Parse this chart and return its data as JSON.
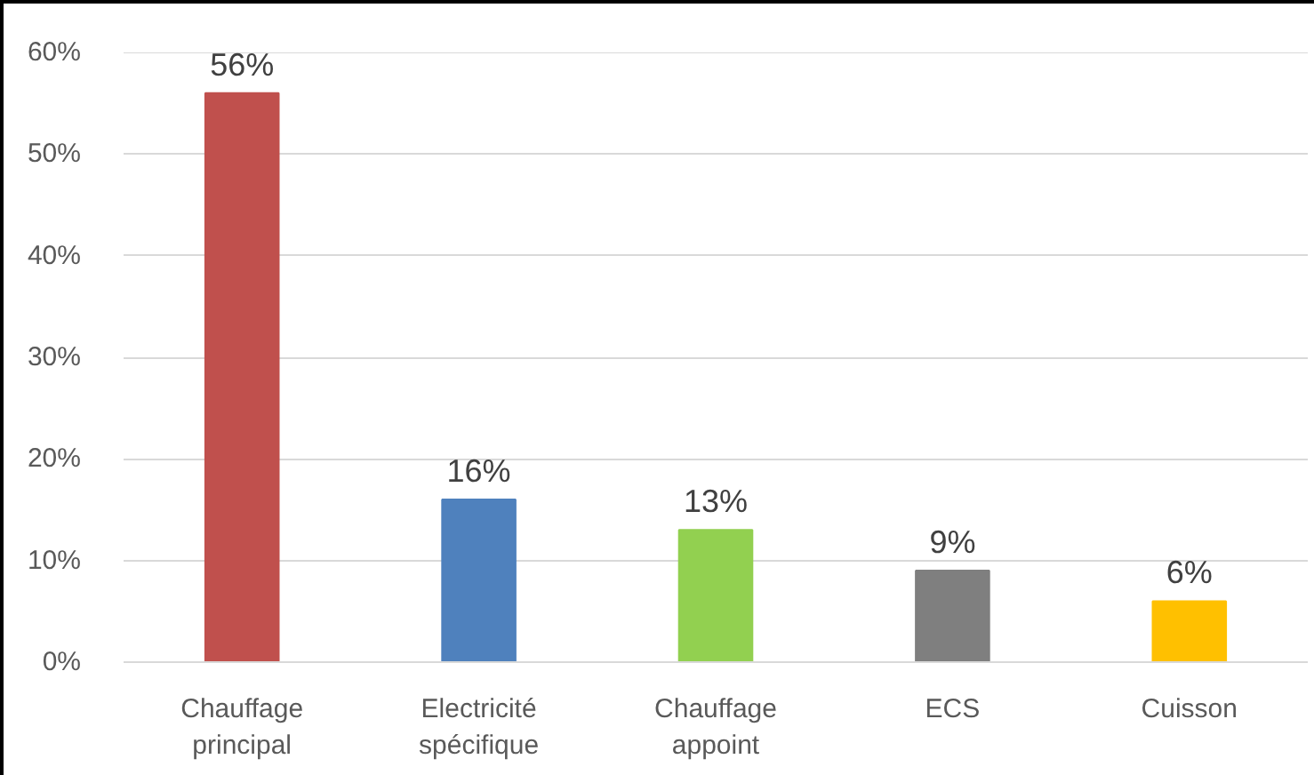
{
  "chart_data": {
    "type": "bar",
    "categories": [
      "Chauffage principal",
      "Electricité spécifique",
      "Chauffage appoint",
      "ECS",
      "Cuisson"
    ],
    "values": [
      56,
      16,
      13,
      9,
      6
    ],
    "colors": [
      "#c0504d",
      "#4f81bd",
      "#92d050",
      "#7f7f7f",
      "#ffc000"
    ],
    "value_labels": [
      "56%",
      "16%",
      "13%",
      "9%",
      "6%"
    ],
    "ylim": [
      0,
      60
    ],
    "yticks": [
      {
        "value": 0,
        "label": "0%"
      },
      {
        "value": 10,
        "label": "10%"
      },
      {
        "value": 20,
        "label": "20%"
      },
      {
        "value": 30,
        "label": "30%"
      },
      {
        "value": 40,
        "label": "40%"
      },
      {
        "value": 50,
        "label": "50%"
      },
      {
        "value": 60,
        "label": "60%"
      }
    ],
    "grid": "y",
    "legend": false
  }
}
